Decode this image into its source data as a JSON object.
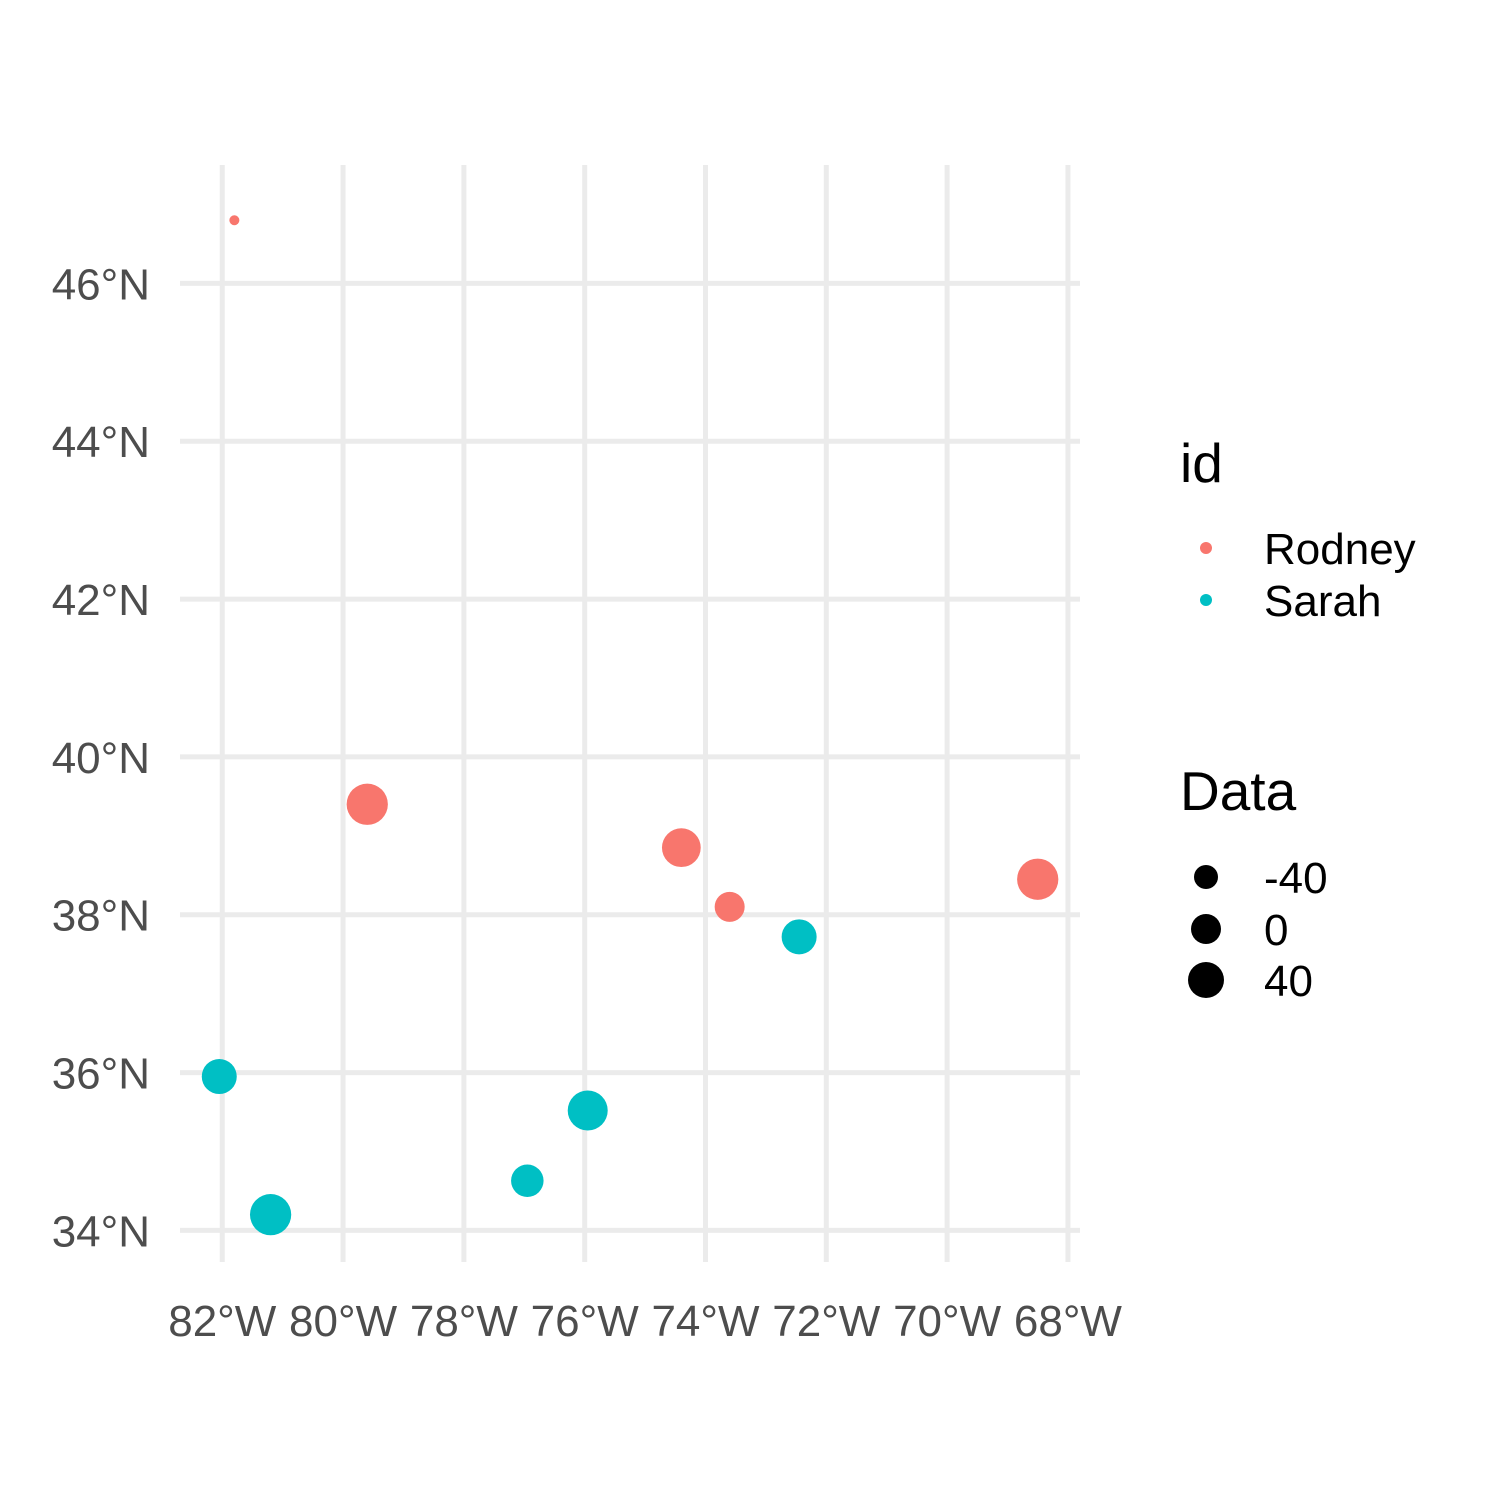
{
  "chart_data": {
    "type": "scatter",
    "x_tick_labels": [
      "82°W",
      "80°W",
      "78°W",
      "76°W",
      "74°W",
      "72°W",
      "70°W",
      "68°W"
    ],
    "x_ticks": [
      -82,
      -80,
      -78,
      -76,
      -74,
      -72,
      -70,
      -68
    ],
    "y_tick_labels": [
      "34°N",
      "36°N",
      "38°N",
      "40°N",
      "42°N",
      "44°N",
      "46°N"
    ],
    "y_ticks": [
      34,
      36,
      38,
      40,
      42,
      44,
      46
    ],
    "xlim": [
      -82.7,
      -67.8
    ],
    "ylim": [
      33.6,
      47.5
    ],
    "grid": true,
    "legend_placement": "right",
    "legend": {
      "color_title": "id",
      "color_entries": [
        {
          "label": "Rodney",
          "color": "#F8766D"
        },
        {
          "label": "Sarah",
          "color": "#00BFC4"
        }
      ],
      "size_title": "Data",
      "size_entries": [
        {
          "label": "-40",
          "value": -40
        },
        {
          "label": "0",
          "value": 0
        },
        {
          "label": "40",
          "value": 40
        }
      ]
    },
    "series": [
      {
        "name": "Rodney",
        "color": "#F8766D",
        "points": [
          {
            "lon": -81.8,
            "lat": 46.8,
            "data": -100
          },
          {
            "lon": -79.6,
            "lat": 39.4,
            "data": 45
          },
          {
            "lon": -74.4,
            "lat": 38.85,
            "data": 35
          },
          {
            "lon": -73.6,
            "lat": 38.1,
            "data": 0
          },
          {
            "lon": -68.5,
            "lat": 38.45,
            "data": 45
          }
        ]
      },
      {
        "name": "Sarah",
        "color": "#00BFC4",
        "points": [
          {
            "lon": -72.45,
            "lat": 37.72,
            "data": 20
          },
          {
            "lon": -82.05,
            "lat": 35.95,
            "data": 20
          },
          {
            "lon": -81.2,
            "lat": 34.2,
            "data": 45
          },
          {
            "lon": -76.95,
            "lat": 34.63,
            "data": 10
          },
          {
            "lon": -75.95,
            "lat": 35.52,
            "data": 40
          }
        ]
      }
    ]
  }
}
